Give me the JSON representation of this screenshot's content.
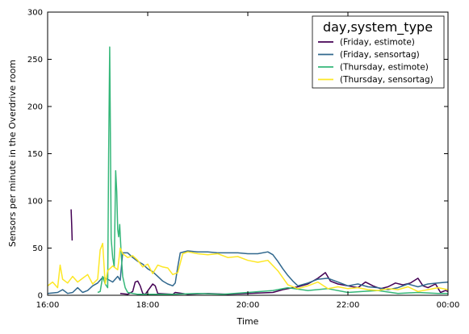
{
  "chart_data": {
    "type": "line",
    "xlabel": "Time",
    "ylabel": "Sensors per minute in the Overdrive room",
    "x_ticks": [
      "16:00",
      "18:00",
      "20:00",
      "22:00",
      "00:00"
    ],
    "x_tick_hours": [
      16,
      18,
      20,
      22,
      24
    ],
    "xlim": [
      16,
      24
    ],
    "ylim": [
      0,
      300
    ],
    "y_ticks": [
      0,
      50,
      100,
      150,
      200,
      250,
      300
    ],
    "grid": false,
    "legend": {
      "title": "day,system_type",
      "placement": "top-right"
    },
    "series": [
      {
        "name": "(Friday, estimote)",
        "color": "#440154",
        "segments": [
          [
            [
              16.47,
              91
            ],
            [
              16.48,
              75
            ],
            [
              16.49,
              58
            ]
          ],
          [
            [
              17.45,
              2
            ],
            [
              17.6,
              1
            ],
            [
              17.7,
              4
            ],
            [
              17.75,
              14
            ],
            [
              17.8,
              15
            ],
            [
              17.85,
              10
            ],
            [
              17.9,
              2
            ],
            [
              17.95,
              1
            ],
            [
              18.1,
              12
            ],
            [
              18.15,
              10
            ],
            [
              18.2,
              2
            ],
            [
              18.5,
              1
            ],
            [
              18.55,
              3
            ],
            [
              18.8,
              1
            ],
            [
              19.2,
              2
            ],
            [
              19.6,
              1
            ],
            [
              20.0,
              2
            ],
            [
              20.5,
              3
            ],
            [
              20.7,
              6
            ],
            [
              20.9,
              8
            ],
            [
              21.0,
              9
            ],
            [
              21.2,
              12
            ],
            [
              21.4,
              18
            ],
            [
              21.55,
              24
            ],
            [
              21.65,
              15
            ],
            [
              21.8,
              12
            ],
            [
              22.0,
              10
            ],
            [
              22.2,
              8
            ],
            [
              22.35,
              14
            ],
            [
              22.5,
              10
            ],
            [
              22.65,
              7
            ],
            [
              22.8,
              9
            ],
            [
              22.95,
              13
            ],
            [
              23.1,
              11
            ],
            [
              23.25,
              13
            ],
            [
              23.4,
              18
            ],
            [
              23.5,
              10
            ],
            [
              23.6,
              8
            ],
            [
              23.75,
              12
            ],
            [
              23.85,
              3
            ],
            [
              23.95,
              5
            ],
            [
              24.0,
              4
            ]
          ]
        ]
      },
      {
        "name": "(Friday, sensortag)",
        "color": "#31688e",
        "segments": [
          [
            [
              16.0,
              2
            ],
            [
              16.2,
              3
            ],
            [
              16.3,
              6
            ],
            [
              16.4,
              2
            ],
            [
              16.5,
              3
            ],
            [
              16.6,
              8
            ],
            [
              16.7,
              3
            ],
            [
              16.8,
              5
            ],
            [
              16.9,
              10
            ],
            [
              17.0,
              13
            ],
            [
              17.1,
              19
            ],
            [
              17.2,
              17
            ],
            [
              17.3,
              14
            ],
            [
              17.4,
              20
            ],
            [
              17.45,
              16
            ],
            [
              17.5,
              45
            ],
            [
              17.6,
              45
            ],
            [
              17.7,
              40
            ],
            [
              17.8,
              36
            ],
            [
              17.9,
              33
            ],
            [
              18.0,
              28
            ],
            [
              18.1,
              25
            ],
            [
              18.2,
              20
            ],
            [
              18.3,
              15
            ],
            [
              18.4,
              12
            ],
            [
              18.5,
              10
            ],
            [
              18.55,
              13
            ],
            [
              18.6,
              30
            ],
            [
              18.65,
              45
            ],
            [
              18.8,
              47
            ],
            [
              19.0,
              46
            ],
            [
              19.2,
              46
            ],
            [
              19.4,
              45
            ],
            [
              19.6,
              45
            ],
            [
              19.8,
              45
            ],
            [
              20.0,
              44
            ],
            [
              20.2,
              44
            ],
            [
              20.4,
              46
            ],
            [
              20.5,
              43
            ],
            [
              20.6,
              36
            ],
            [
              20.7,
              28
            ],
            [
              20.8,
              21
            ],
            [
              20.9,
              15
            ],
            [
              21.0,
              10
            ],
            [
              21.2,
              13
            ],
            [
              21.4,
              17
            ],
            [
              21.6,
              18
            ],
            [
              21.8,
              14
            ],
            [
              22.0,
              10
            ],
            [
              22.2,
              12
            ],
            [
              22.4,
              9
            ],
            [
              22.6,
              8
            ],
            [
              22.8,
              6
            ],
            [
              23.0,
              8
            ],
            [
              23.2,
              12
            ],
            [
              23.4,
              9
            ],
            [
              23.6,
              12
            ],
            [
              23.8,
              13
            ],
            [
              24.0,
              14
            ]
          ]
        ]
      },
      {
        "name": "(Thursday, estimote)",
        "color": "#35b779",
        "segments": [
          [
            [
              17.0,
              3
            ],
            [
              17.05,
              4
            ],
            [
              17.1,
              20
            ],
            [
              17.15,
              12
            ],
            [
              17.2,
              8
            ],
            [
              17.22,
              150
            ],
            [
              17.24,
              263
            ],
            [
              17.25,
              200
            ],
            [
              17.27,
              60
            ],
            [
              17.3,
              40
            ],
            [
              17.33,
              30
            ],
            [
              17.36,
              132
            ],
            [
              17.38,
              110
            ],
            [
              17.4,
              70
            ],
            [
              17.42,
              62
            ],
            [
              17.44,
              75
            ],
            [
              17.47,
              44
            ],
            [
              17.5,
              20
            ],
            [
              17.55,
              8
            ],
            [
              17.6,
              3
            ],
            [
              17.8,
              1
            ],
            [
              18.5,
              1
            ],
            [
              19.0,
              2
            ],
            [
              19.5,
              1
            ],
            [
              20.0,
              3
            ],
            [
              20.5,
              5
            ],
            [
              20.8,
              8
            ],
            [
              21.2,
              5
            ],
            [
              21.6,
              7
            ],
            [
              22.0,
              3
            ],
            [
              22.3,
              4
            ],
            [
              22.6,
              5
            ],
            [
              23.0,
              2
            ],
            [
              23.4,
              3
            ],
            [
              23.8,
              2
            ],
            [
              24.0,
              2
            ]
          ]
        ]
      },
      {
        "name": "(Thursday, sensortag)",
        "color": "#fde725",
        "segments": [
          [
            [
              16.0,
              10
            ],
            [
              16.1,
              14
            ],
            [
              16.2,
              8
            ],
            [
              16.25,
              32
            ],
            [
              16.3,
              17
            ],
            [
              16.4,
              13
            ],
            [
              16.5,
              20
            ],
            [
              16.6,
              14
            ],
            [
              16.7,
              18
            ],
            [
              16.8,
              22
            ],
            [
              16.9,
              12
            ],
            [
              17.0,
              17
            ],
            [
              17.05,
              48
            ],
            [
              17.1,
              55
            ],
            [
              17.15,
              12
            ],
            [
              17.2,
              26
            ],
            [
              17.3,
              31
            ],
            [
              17.4,
              27
            ],
            [
              17.45,
              50
            ],
            [
              17.5,
              44
            ],
            [
              17.6,
              40
            ],
            [
              17.7,
              42
            ],
            [
              17.8,
              37
            ],
            [
              17.9,
              30
            ],
            [
              18.0,
              33
            ],
            [
              18.1,
              23
            ],
            [
              18.2,
              32
            ],
            [
              18.3,
              30
            ],
            [
              18.4,
              29
            ],
            [
              18.5,
              22
            ],
            [
              18.6,
              24
            ],
            [
              18.7,
              44
            ],
            [
              18.8,
              46
            ],
            [
              19.0,
              44
            ],
            [
              19.2,
              43
            ],
            [
              19.4,
              44
            ],
            [
              19.6,
              40
            ],
            [
              19.8,
              41
            ],
            [
              20.0,
              37
            ],
            [
              20.2,
              35
            ],
            [
              20.4,
              37
            ],
            [
              20.6,
              26
            ],
            [
              20.8,
              11
            ],
            [
              21.0,
              7
            ],
            [
              21.2,
              10
            ],
            [
              21.4,
              14
            ],
            [
              21.6,
              7
            ],
            [
              21.8,
              9
            ],
            [
              22.0,
              7
            ],
            [
              22.2,
              8
            ],
            [
              22.4,
              6
            ],
            [
              22.6,
              5
            ],
            [
              22.8,
              7
            ],
            [
              23.0,
              6
            ],
            [
              23.2,
              9
            ],
            [
              23.4,
              4
            ],
            [
              23.6,
              6
            ],
            [
              23.8,
              8
            ],
            [
              24.0,
              6
            ]
          ]
        ]
      }
    ]
  }
}
